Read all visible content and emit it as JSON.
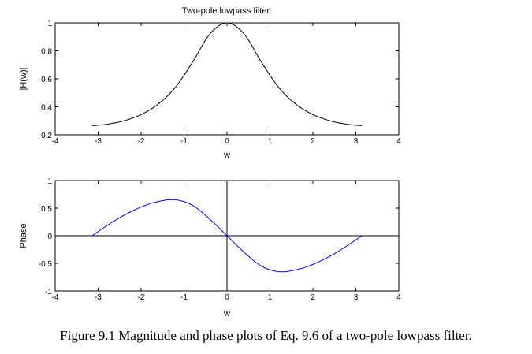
{
  "caption": "Figure 9.1 Magnitude and phase plots of Eq. 9.6 of a two-pole lowpass filter.",
  "chart_data": [
    {
      "type": "line",
      "title": "Two-pole lowpass filter:",
      "xlabel": "w",
      "ylabel": "|H(w)|",
      "xlim": [
        -4,
        4
      ],
      "ylim": [
        0.2,
        1
      ],
      "xticks": [
        "-4",
        "-3",
        "-2",
        "-1",
        "0",
        "1",
        "2",
        "3",
        "4"
      ],
      "yticks": [
        "0.2",
        "0.4",
        "0.6",
        "0.8",
        "1"
      ],
      "grid": false,
      "line_color": "#000000",
      "series": [
        {
          "x": [
            -3.14,
            -2.8,
            -2.4,
            -2.0,
            -1.6,
            -1.2,
            -0.8,
            -0.4,
            0,
            0.4,
            0.8,
            1.2,
            1.6,
            2.0,
            2.4,
            2.8,
            3.14
          ],
          "y": [
            0.265,
            0.275,
            0.3,
            0.345,
            0.42,
            0.54,
            0.72,
            0.92,
            1.0,
            0.92,
            0.72,
            0.54,
            0.42,
            0.345,
            0.3,
            0.275,
            0.265
          ]
        }
      ]
    },
    {
      "type": "line",
      "title": "",
      "xlabel": "w",
      "ylabel": "Phase",
      "xlim": [
        -4,
        4
      ],
      "ylim": [
        -1,
        1
      ],
      "xticks": [
        "-4",
        "-3",
        "-2",
        "-1",
        "0",
        "1",
        "2",
        "3",
        "4"
      ],
      "yticks": [
        "-1",
        "-0.5",
        "0",
        "0.5",
        "1"
      ],
      "grid": false,
      "zero_lines": true,
      "line_color": "#0000ff",
      "series": [
        {
          "x": [
            -3.14,
            -2.8,
            -2.4,
            -2.0,
            -1.6,
            -1.2,
            -0.8,
            -0.4,
            0,
            0.4,
            0.8,
            1.2,
            1.6,
            2.0,
            2.4,
            2.8,
            3.14
          ],
          "y": [
            0,
            0.18,
            0.37,
            0.52,
            0.62,
            0.65,
            0.55,
            0.3,
            0,
            -0.3,
            -0.55,
            -0.65,
            -0.62,
            -0.52,
            -0.37,
            -0.18,
            0
          ]
        }
      ]
    }
  ]
}
